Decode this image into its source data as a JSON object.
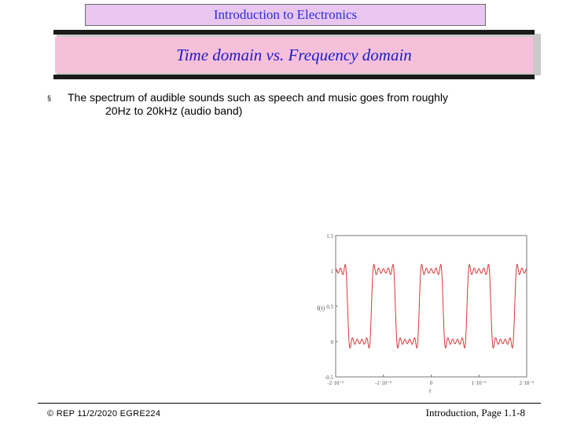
{
  "header": {
    "title": "Introduction to Electronics"
  },
  "slide": {
    "title": "Time domain vs. Frequency domain",
    "bullet_marker": "§",
    "bullet_line1": "The spectrum of audible sounds such as speech and music goes from roughly",
    "bullet_line2": "20Hz to 20kHz (audio band)"
  },
  "chart_data": {
    "type": "line",
    "ylabel": "f(t)",
    "xlabel": "t",
    "y_tick_labels": [
      "1.5",
      "1",
      "0.5",
      "0",
      "-0.5"
    ],
    "x_tick_labels": [
      "-2·10⁻⁶",
      "-1·10⁻⁶",
      "0",
      "1·10⁻⁶",
      "2·10⁻⁶"
    ],
    "ylim": [
      -0.5,
      1.5
    ],
    "xlim": [
      -2e-06,
      2e-06
    ],
    "series": [
      {
        "color": "#d43a3a",
        "kind": "square wave (Fourier partial sum)",
        "period": 1e-06,
        "low": 0,
        "high": 1
      }
    ]
  },
  "footer": {
    "left": "© REP 11/2/2020 EGRE224",
    "right": "Introduction, Page 1.1-8"
  }
}
